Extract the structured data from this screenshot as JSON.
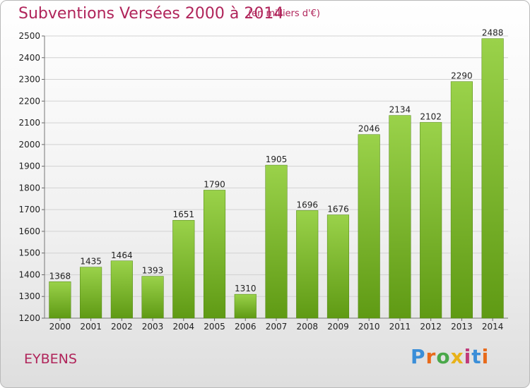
{
  "header": {
    "title": "Subventions Versées 2000 à 2014",
    "subtitle": "(en milliers d'€)"
  },
  "footer": {
    "city": "EYBENS",
    "logo": "Proxiti",
    "logo_colors": [
      "#3a8ed8",
      "#e86a1a",
      "#4aa84a",
      "#e8b21a",
      "#c0397a",
      "#3a8ed8",
      "#e86a1a"
    ]
  },
  "chart_data": {
    "type": "bar",
    "title": "Subventions Versées 2000 à 2014",
    "subtitle": "(en milliers d'€)",
    "xlabel": "",
    "ylabel": "",
    "categories": [
      "2000",
      "2001",
      "2002",
      "2003",
      "2004",
      "2005",
      "2006",
      "2007",
      "2008",
      "2009",
      "2010",
      "2011",
      "2012",
      "2013",
      "2014"
    ],
    "values": [
      1368,
      1435,
      1464,
      1393,
      1651,
      1790,
      1310,
      1905,
      1696,
      1676,
      2046,
      2134,
      2102,
      2290,
      2488
    ],
    "ylim": [
      1200,
      2500
    ],
    "yticks": [
      1200,
      1300,
      1400,
      1500,
      1600,
      1700,
      1800,
      1900,
      2000,
      2100,
      2200,
      2300,
      2400,
      2500
    ],
    "grid": true,
    "bar_color_top": "#9ad24a",
    "bar_color_bottom": "#5f9a14"
  }
}
